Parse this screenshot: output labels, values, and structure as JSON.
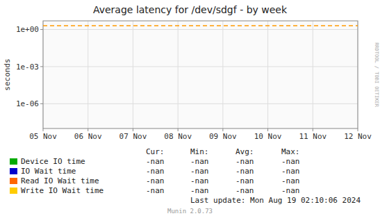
{
  "chart_data": {
    "type": "line",
    "title": "Average latency for /dev/sdgf - by week",
    "y_label": "seconds",
    "categories": [
      "05 Nov",
      "06 Nov",
      "07 Nov",
      "08 Nov",
      "09 Nov",
      "10 Nov",
      "11 Nov",
      "12 Nov"
    ],
    "log": "y",
    "ylim": [
      1e-08,
      5.0
    ],
    "yticks": [
      {
        "value": 1e-06,
        "label": "1e-06"
      },
      {
        "value": 0.001,
        "label": "1e-03"
      },
      {
        "value": 1,
        "label": "1e+00"
      }
    ],
    "grid": true,
    "reference_line": {
      "value": 2.0,
      "color": "#ff9900",
      "line_style": "dashed"
    },
    "series": [
      {
        "name": "Device IO time",
        "color": "#00aa00",
        "stats": [
          "-nan",
          "-nan",
          "-nan",
          "-nan"
        ]
      },
      {
        "name": "IO Wait time",
        "color": "#0000cc",
        "stats": [
          "-nan",
          "-nan",
          "-nan",
          "-nan"
        ]
      },
      {
        "name": "Read IO Wait time",
        "color": "#ff6600",
        "stats": [
          "-nan",
          "-nan",
          "-nan",
          "-nan"
        ]
      },
      {
        "name": "Write IO Wait time",
        "color": "#ffcc00",
        "stats": [
          "-nan",
          "-nan",
          "-nan",
          "-nan"
        ]
      }
    ],
    "stats_headers": [
      "Cur:",
      "Min:",
      "Avg:",
      "Max:"
    ],
    "annotations": [
      "Last update: Mon Aug 19 02:10:06 2024",
      "Munin 2.0.73",
      "RRDTOOL / TOBI OETIKER"
    ]
  }
}
